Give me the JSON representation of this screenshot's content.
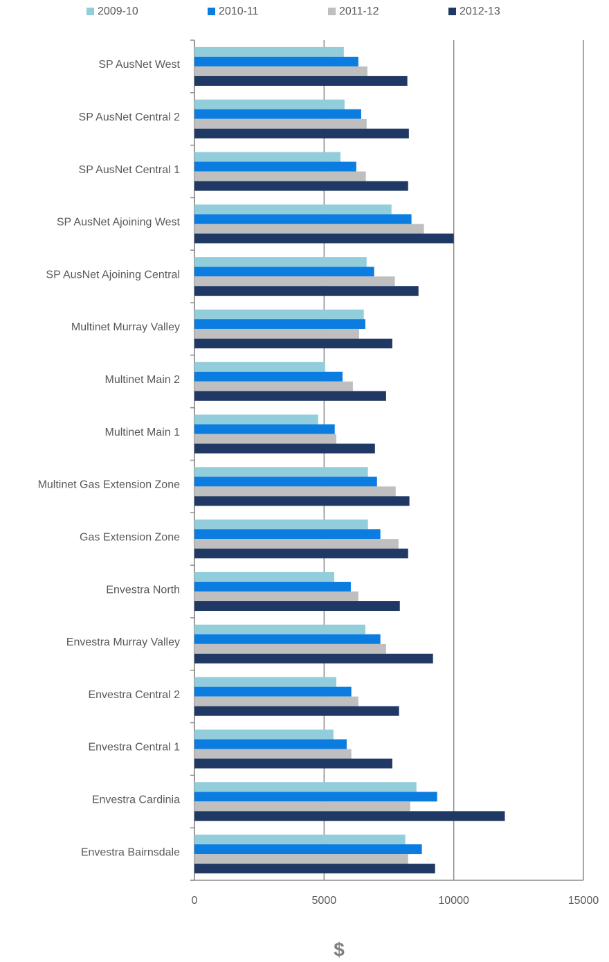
{
  "chart_data": {
    "type": "barh",
    "categories": [
      "SP AusNet West",
      "SP AusNet Central 2",
      "SP AusNet Central 1",
      "SP AusNet Ajoining West",
      "SP AusNet Ajoining Central",
      "Multinet Murray Valley",
      "Multinet Main 2",
      "Multinet Main 1",
      "Multinet Gas Extension Zone",
      "Gas Extension Zone",
      "Envestra North",
      "Envestra Murray Valley",
      "Envestra Central 2",
      "Envestra Central 1",
      "Envestra Cardinia",
      "Envestra Bairnsdale"
    ],
    "series": [
      {
        "name": "2009-10",
        "color": "#92cddc",
        "values": [
          5760,
          5790,
          5630,
          7600,
          6640,
          6530,
          5040,
          4770,
          6690,
          6690,
          5390,
          6590,
          5470,
          5360,
          8560,
          8130
        ]
      },
      {
        "name": "2010-11",
        "color": "#0b7ce0",
        "values": [
          6320,
          6430,
          6240,
          8370,
          6930,
          6590,
          5710,
          5410,
          7040,
          7170,
          6030,
          7170,
          6050,
          5870,
          9360,
          8770
        ]
      },
      {
        "name": "2011-12",
        "color": "#bfbfbf",
        "values": [
          6670,
          6640,
          6610,
          8850,
          7730,
          6350,
          6110,
          5470,
          7760,
          7870,
          6320,
          7390,
          6320,
          6050,
          8320,
          8240
        ]
      },
      {
        "name": "2012-13",
        "color": "#1f3864",
        "values": [
          8210,
          8270,
          8240,
          10000,
          8640,
          7630,
          7390,
          6960,
          8290,
          8240,
          7920,
          9200,
          7890,
          7630,
          11970,
          9280
        ]
      }
    ],
    "xlabel": "$",
    "xlim": [
      0,
      15000
    ],
    "xticks": [
      0,
      5000,
      10000,
      15000
    ],
    "grid": true,
    "legend": "top"
  }
}
